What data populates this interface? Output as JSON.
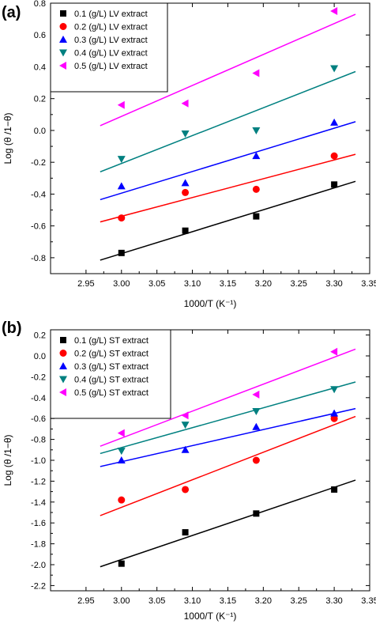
{
  "chart_data": [
    {
      "type": "scatter",
      "panel_label": "(a)",
      "xlabel": "1000/T (K⁻¹)",
      "ylabel": "Log (θ /1−θ)",
      "xlim": [
        2.9,
        3.35
      ],
      "ylim": [
        -0.9,
        0.8
      ],
      "x_ticks": [
        2.95,
        3.0,
        3.05,
        3.1,
        3.15,
        3.2,
        3.25,
        3.3,
        3.35
      ],
      "y_ticks": [
        -0.8,
        -0.6,
        -0.4,
        -0.2,
        0.0,
        0.2,
        0.4,
        0.6,
        0.8
      ],
      "x_tick_labels": [
        "2.95",
        "3.00",
        "3.05",
        "3.10",
        "3.15",
        "3.20",
        "3.25",
        "3.30",
        "3.35"
      ],
      "y_tick_labels": [
        "-0.8",
        "-0.6",
        "-0.4",
        "-0.2",
        "0.0",
        "0.2",
        "0.4",
        "0.6",
        "0.8"
      ],
      "legend_position": "top-left",
      "series": [
        {
          "name": "0.1 (g/L) LV extract",
          "color": "#000000",
          "marker": "square",
          "x": [
            3.0,
            3.09,
            3.19,
            3.3
          ],
          "y": [
            -0.77,
            -0.63,
            -0.54,
            -0.34
          ],
          "fit": {
            "x": [
              2.97,
              3.33
            ],
            "y": [
              -0.815,
              -0.32
            ]
          }
        },
        {
          "name": "0.2 (g/L) LV extract",
          "color": "#ff0000",
          "marker": "circle",
          "x": [
            3.0,
            3.09,
            3.19,
            3.3
          ],
          "y": [
            -0.55,
            -0.39,
            -0.37,
            -0.16
          ],
          "fit": {
            "x": [
              2.97,
              3.33
            ],
            "y": [
              -0.575,
              -0.15
            ]
          }
        },
        {
          "name": "0.3 (g/L) LV extract",
          "color": "#0000ff",
          "marker": "triangle-up",
          "x": [
            3.0,
            3.09,
            3.19,
            3.3
          ],
          "y": [
            -0.35,
            -0.33,
            -0.16,
            0.05
          ],
          "fit": {
            "x": [
              2.97,
              3.33
            ],
            "y": [
              -0.435,
              0.055
            ]
          }
        },
        {
          "name": "0.4 (g/L) LV extract",
          "color": "#008080",
          "marker": "triangle-down",
          "x": [
            3.0,
            3.09,
            3.19,
            3.3
          ],
          "y": [
            -0.18,
            -0.02,
            0.0,
            0.39
          ],
          "fit": {
            "x": [
              2.97,
              3.33
            ],
            "y": [
              -0.26,
              0.37
            ]
          }
        },
        {
          "name": "0.5 (g/L) LV extract",
          "color": "#ff00ff",
          "marker": "triangle-left",
          "x": [
            3.0,
            3.09,
            3.19,
            3.3
          ],
          "y": [
            0.16,
            0.17,
            0.36,
            0.75
          ],
          "fit": {
            "x": [
              2.97,
              3.33
            ],
            "y": [
              0.03,
              0.73
            ]
          }
        }
      ]
    },
    {
      "type": "scatter",
      "panel_label": "(b)",
      "xlabel": "1000/T (K⁻¹)",
      "ylabel": "Log (θ /1−θ)",
      "xlim": [
        2.9,
        3.35
      ],
      "ylim": [
        -2.25,
        0.25
      ],
      "x_ticks": [
        2.95,
        3.0,
        3.05,
        3.1,
        3.15,
        3.2,
        3.25,
        3.3,
        3.35
      ],
      "y_ticks": [
        -2.2,
        -2.0,
        -1.8,
        -1.6,
        -1.4,
        -1.2,
        -1.0,
        -0.8,
        -0.6,
        -0.4,
        -0.2,
        0.0,
        0.2
      ],
      "x_tick_labels": [
        "2.95",
        "3.00",
        "3.05",
        "3.10",
        "3.15",
        "3.20",
        "3.25",
        "3.30",
        "3.35"
      ],
      "y_tick_labels": [
        "-2.2",
        "-2.0",
        "-1.8",
        "-1.6",
        "-1.4",
        "-1.2",
        "-1.0",
        "-0.8",
        "-0.6",
        "-0.4",
        "-0.2",
        "0.0",
        "0.2"
      ],
      "legend_position": "top-left",
      "series": [
        {
          "name": "0.1 (g/L) ST extract",
          "color": "#000000",
          "marker": "square",
          "x": [
            3.0,
            3.09,
            3.19,
            3.3
          ],
          "y": [
            -1.99,
            -1.69,
            -1.51,
            -1.28
          ],
          "fit": {
            "x": [
              2.97,
              3.33
            ],
            "y": [
              -2.02,
              -1.19
            ]
          }
        },
        {
          "name": "0.2 (g/L) ST extract",
          "color": "#ff0000",
          "marker": "circle",
          "x": [
            3.0,
            3.09,
            3.19,
            3.3
          ],
          "y": [
            -1.38,
            -1.28,
            -1.0,
            -0.6
          ],
          "fit": {
            "x": [
              2.97,
              3.33
            ],
            "y": [
              -1.53,
              -0.58
            ]
          }
        },
        {
          "name": "0.3 (g/L) ST extract",
          "color": "#0000ff",
          "marker": "triangle-up",
          "x": [
            3.0,
            3.09,
            3.19,
            3.3
          ],
          "y": [
            -1.0,
            -0.9,
            -0.68,
            -0.55
          ],
          "fit": {
            "x": [
              2.97,
              3.33
            ],
            "y": [
              -1.06,
              -0.505
            ]
          }
        },
        {
          "name": "0.4 (g/L) ST extract",
          "color": "#008080",
          "marker": "triangle-down",
          "x": [
            3.0,
            3.09,
            3.19,
            3.3
          ],
          "y": [
            -0.91,
            -0.66,
            -0.53,
            -0.32
          ],
          "fit": {
            "x": [
              2.97,
              3.33
            ],
            "y": [
              -0.935,
              -0.25
            ]
          }
        },
        {
          "name": "0.5 (g/L) ST extract",
          "color": "#ff00ff",
          "marker": "triangle-left",
          "x": [
            3.0,
            3.09,
            3.19,
            3.3
          ],
          "y": [
            -0.74,
            -0.57,
            -0.37,
            0.04
          ],
          "fit": {
            "x": [
              2.97,
              3.33
            ],
            "y": [
              -0.865,
              0.065
            ]
          }
        }
      ]
    }
  ]
}
